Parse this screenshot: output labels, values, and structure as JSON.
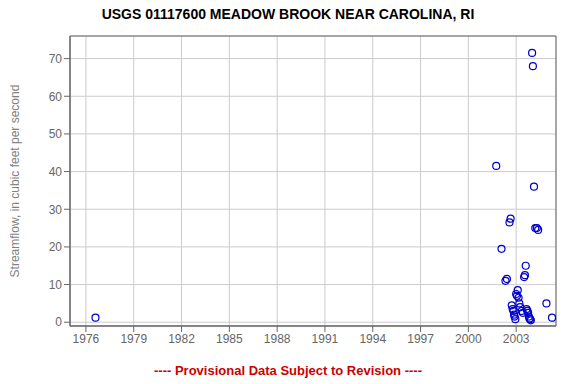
{
  "chart_data": {
    "type": "scatter",
    "title": "USGS 01117600 MEADOW BROOK NEAR CAROLINA, RI",
    "y_label": "Streamflow, in cubic feet per second",
    "annotations": [
      {
        "text": "---- Provisional Data Subject to Revision ----",
        "color": "#cc0000"
      }
    ],
    "x": [
      1976.6,
      2001.75,
      2002.08,
      2002.33,
      2002.42,
      2002.58,
      2002.65,
      2002.72,
      2002.78,
      2002.83,
      2002.87,
      2002.9,
      2002.95,
      2003.0,
      2003.05,
      2003.1,
      2003.15,
      2003.2,
      2003.25,
      2003.35,
      2003.42,
      2003.5,
      2003.55,
      2003.6,
      2003.65,
      2003.7,
      2003.75,
      2003.8,
      2003.83,
      2003.88,
      2003.92,
      2004.0,
      2004.05,
      2004.12,
      2004.2,
      2004.3,
      2004.38,
      2004.9,
      2005.25
    ],
    "values": [
      1.2,
      41.5,
      19.5,
      11.0,
      11.5,
      26.5,
      27.5,
      4.5,
      3.5,
      3.0,
      2.0,
      1.5,
      0.8,
      7.5,
      7.0,
      8.5,
      6.5,
      5.0,
      4.0,
      3.0,
      2.5,
      12.0,
      12.5,
      15.0,
      3.5,
      3.0,
      2.5,
      1.5,
      1.0,
      0.8,
      0.5,
      71.5,
      68.0,
      36.0,
      25.0,
      25.0,
      24.5,
      5.0,
      1.2
    ],
    "color": "#0000cc",
    "marker": "circle",
    "xlim": [
      1975.0,
      2005.5
    ],
    "ylim": [
      -1,
      76
    ],
    "xticks": [
      1976,
      1979,
      1982,
      1985,
      1988,
      1991,
      1994,
      1997,
      2000,
      2003
    ],
    "yticks": [
      0,
      10,
      20,
      30,
      40,
      50,
      60,
      70
    ],
    "grid": true
  }
}
